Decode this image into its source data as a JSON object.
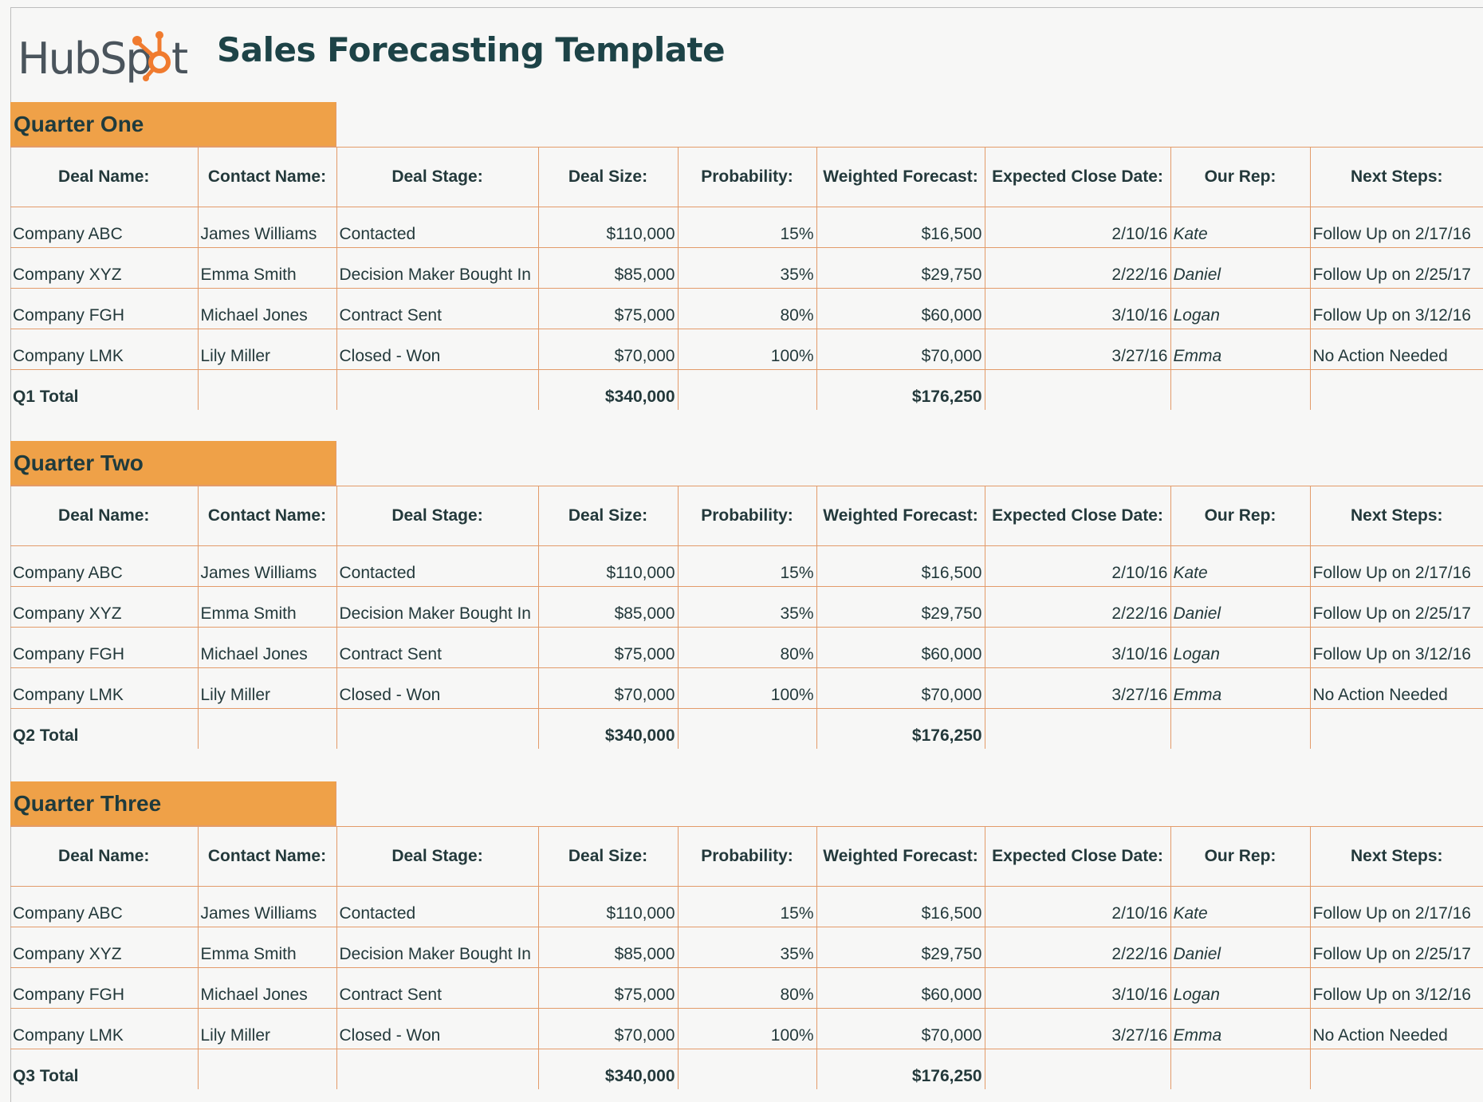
{
  "header": {
    "logo_text": "HubSpot",
    "title": "Sales Forecasting Template"
  },
  "colors": {
    "accent": "#efa148",
    "border": "#e39b6a",
    "text": "#23393b",
    "title": "#1d4347"
  },
  "columns": [
    "Deal Name:",
    "Contact Name:",
    "Deal Stage:",
    "Deal Size:",
    "Probability:",
    "Weighted Forecast:",
    "Expected Close Date:",
    "Our Rep:",
    "Next Steps:"
  ],
  "quarters": [
    {
      "title": "Quarter One",
      "rows": [
        [
          "Company ABC",
          "James Williams",
          "Contacted",
          "$110,000",
          "15%",
          "$16,500",
          "2/10/16",
          "Kate",
          "Follow Up on 2/17/16"
        ],
        [
          "Company XYZ",
          "Emma Smith",
          "Decision Maker Bought In",
          "$85,000",
          "35%",
          "$29,750",
          "2/22/16",
          "Daniel",
          "Follow Up on 2/25/17"
        ],
        [
          "Company FGH",
          "Michael Jones",
          "Contract Sent",
          "$75,000",
          "80%",
          "$60,000",
          "3/10/16",
          "Logan",
          "Follow Up on 3/12/16"
        ],
        [
          "Company LMK",
          "Lily Miller",
          "Closed - Won",
          "$70,000",
          "100%",
          "$70,000",
          "3/27/16",
          "Emma",
          "No Action Needed"
        ]
      ],
      "total": {
        "label": "Q1 Total",
        "deal_size": "$340,000",
        "weighted": "$176,250"
      }
    },
    {
      "title": "Quarter Two",
      "rows": [
        [
          "Company ABC",
          "James Williams",
          "Contacted",
          "$110,000",
          "15%",
          "$16,500",
          "2/10/16",
          "Kate",
          "Follow Up on 2/17/16"
        ],
        [
          "Company XYZ",
          "Emma Smith",
          "Decision Maker Bought In",
          "$85,000",
          "35%",
          "$29,750",
          "2/22/16",
          "Daniel",
          "Follow Up on 2/25/17"
        ],
        [
          "Company FGH",
          "Michael Jones",
          "Contract Sent",
          "$75,000",
          "80%",
          "$60,000",
          "3/10/16",
          "Logan",
          "Follow Up on 3/12/16"
        ],
        [
          "Company LMK",
          "Lily Miller",
          "Closed - Won",
          "$70,000",
          "100%",
          "$70,000",
          "3/27/16",
          "Emma",
          "No Action Needed"
        ]
      ],
      "total": {
        "label": "Q2 Total",
        "deal_size": "$340,000",
        "weighted": "$176,250"
      }
    },
    {
      "title": "Quarter Three",
      "rows": [
        [
          "Company ABC",
          "James Williams",
          "Contacted",
          "$110,000",
          "15%",
          "$16,500",
          "2/10/16",
          "Kate",
          "Follow Up on 2/17/16"
        ],
        [
          "Company XYZ",
          "Emma Smith",
          "Decision Maker Bought In",
          "$85,000",
          "35%",
          "$29,750",
          "2/22/16",
          "Daniel",
          "Follow Up on 2/25/17"
        ],
        [
          "Company FGH",
          "Michael Jones",
          "Contract Sent",
          "$75,000",
          "80%",
          "$60,000",
          "3/10/16",
          "Logan",
          "Follow Up on 3/12/16"
        ],
        [
          "Company LMK",
          "Lily Miller",
          "Closed - Won",
          "$70,000",
          "100%",
          "$70,000",
          "3/27/16",
          "Emma",
          "No Action Needed"
        ]
      ],
      "total": {
        "label": "Q3 Total",
        "deal_size": "$340,000",
        "weighted": "$176,250"
      }
    }
  ]
}
